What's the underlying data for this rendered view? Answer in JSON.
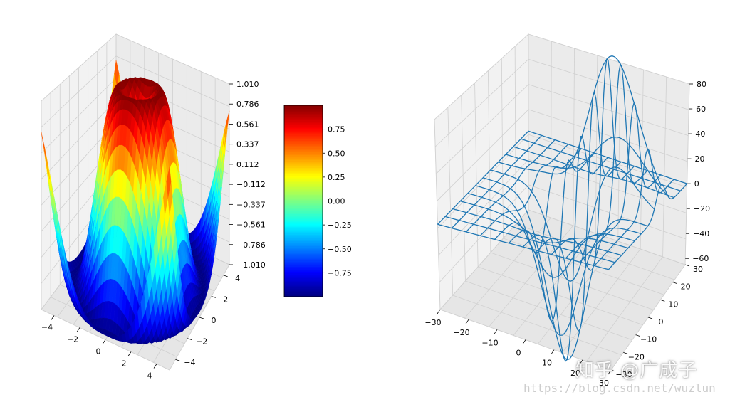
{
  "watermark": {
    "text": "知乎 @广成子",
    "url": "https://blog.csdn.net/wuzlun"
  },
  "chart_data": [
    {
      "type": "surface",
      "function": "z = sin(sqrt(x^2 + y^2))",
      "colormap": "jet",
      "x_range": [
        -5,
        5
      ],
      "y_range": [
        -5,
        5
      ],
      "x_ticks": [
        "−4",
        "−2",
        "0",
        "2",
        "4"
      ],
      "y_ticks": [
        "−4",
        "−2",
        "0",
        "2",
        "4"
      ],
      "z_ticks": [
        "−1.010",
        "−0.786",
        "−0.561",
        "−0.337",
        "−0.112",
        "0.112",
        "0.337",
        "0.561",
        "0.786",
        "1.010"
      ],
      "zlim": [
        -1.01,
        1.01
      ],
      "grid": true
    },
    {
      "type": "colorbar",
      "colormap": "jet",
      "range": [
        -1.0,
        1.0
      ],
      "ticks": [
        "−0.75",
        "−0.50",
        "−0.25",
        "0.00",
        "0.25",
        "0.50",
        "0.75"
      ],
      "tick_values": [
        -0.75,
        -0.5,
        -0.25,
        0.0,
        0.25,
        0.5,
        0.75
      ]
    },
    {
      "type": "wireframe",
      "color": "#1f77b4",
      "x_ticks": [
        "−30",
        "−20",
        "−10",
        "0",
        "10",
        "20",
        "30"
      ],
      "y_ticks": [
        "−30",
        "−20",
        "−10",
        "0",
        "10",
        "20",
        "30"
      ],
      "z_ticks": [
        "−60",
        "−40",
        "−20",
        "0",
        "20",
        "40",
        "60",
        "80"
      ],
      "x_range": [
        -30,
        30
      ],
      "y_range": [
        -30,
        30
      ],
      "z_range": [
        -65,
        80
      ],
      "grid": true
    }
  ]
}
